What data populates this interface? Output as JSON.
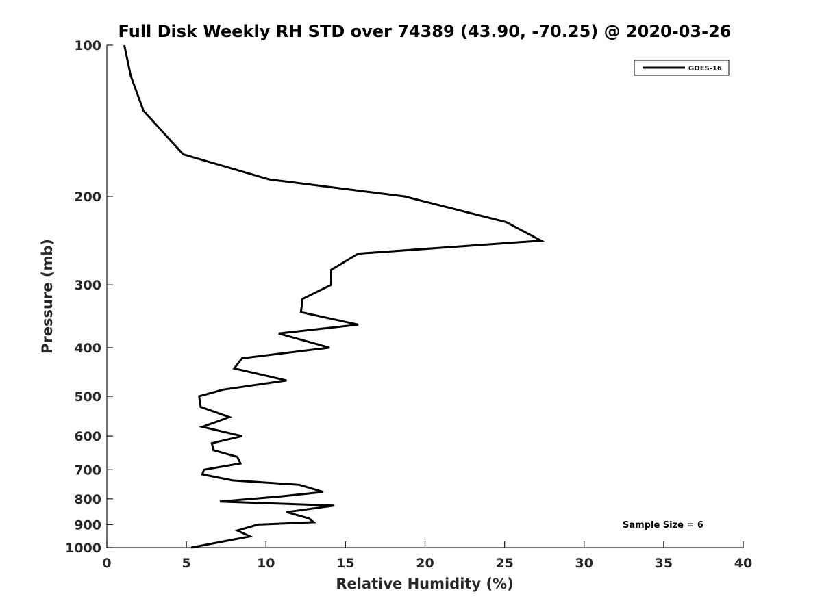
{
  "chart_data": {
    "type": "line",
    "title": "Full Disk Weekly RH STD over 74389 (43.90, -70.25) @ 2020-03-26",
    "xlabel": "Relative Humidity (%)",
    "ylabel": "Pressure (mb)",
    "xlim": [
      0,
      40
    ],
    "ylim": [
      100,
      1000
    ],
    "y_scale": "log",
    "y_reversed": true,
    "grid": false,
    "xticks": [
      0,
      5,
      10,
      15,
      20,
      25,
      30,
      35,
      40
    ],
    "yticks": [
      100,
      200,
      300,
      400,
      500,
      600,
      700,
      800,
      900,
      1000
    ],
    "legend_position": "top-right",
    "annotation": "Sample Size = 6",
    "series": [
      {
        "name": "GOES-16",
        "color": "#000000",
        "points": [
          [
            1.1,
            100
          ],
          [
            1.5,
            115
          ],
          [
            2.3,
            135
          ],
          [
            4.8,
            165
          ],
          [
            10.2,
            185
          ],
          [
            18.7,
            200
          ],
          [
            25.1,
            225
          ],
          [
            27.3,
            245
          ],
          [
            15.8,
            260
          ],
          [
            14.1,
            280
          ],
          [
            14.1,
            300
          ],
          [
            12.3,
            320
          ],
          [
            12.2,
            340
          ],
          [
            15.8,
            360
          ],
          [
            10.8,
            375
          ],
          [
            14.0,
            400
          ],
          [
            8.5,
            420
          ],
          [
            8.0,
            440
          ],
          [
            11.3,
            465
          ],
          [
            7.3,
            485
          ],
          [
            5.8,
            500
          ],
          [
            5.9,
            525
          ],
          [
            7.7,
            550
          ],
          [
            6.0,
            575
          ],
          [
            8.5,
            600
          ],
          [
            6.6,
            620
          ],
          [
            6.7,
            640
          ],
          [
            8.2,
            660
          ],
          [
            8.4,
            680
          ],
          [
            6.1,
            700
          ],
          [
            6.0,
            715
          ],
          [
            7.9,
            735
          ],
          [
            12.1,
            750
          ],
          [
            13.6,
            775
          ],
          [
            11.1,
            790
          ],
          [
            7.1,
            810
          ],
          [
            14.3,
            825
          ],
          [
            11.3,
            850
          ],
          [
            12.7,
            875
          ],
          [
            13.0,
            890
          ],
          [
            9.5,
            900
          ],
          [
            8.2,
            925
          ],
          [
            9.0,
            950
          ],
          [
            5.3,
            1000
          ]
        ]
      }
    ]
  }
}
